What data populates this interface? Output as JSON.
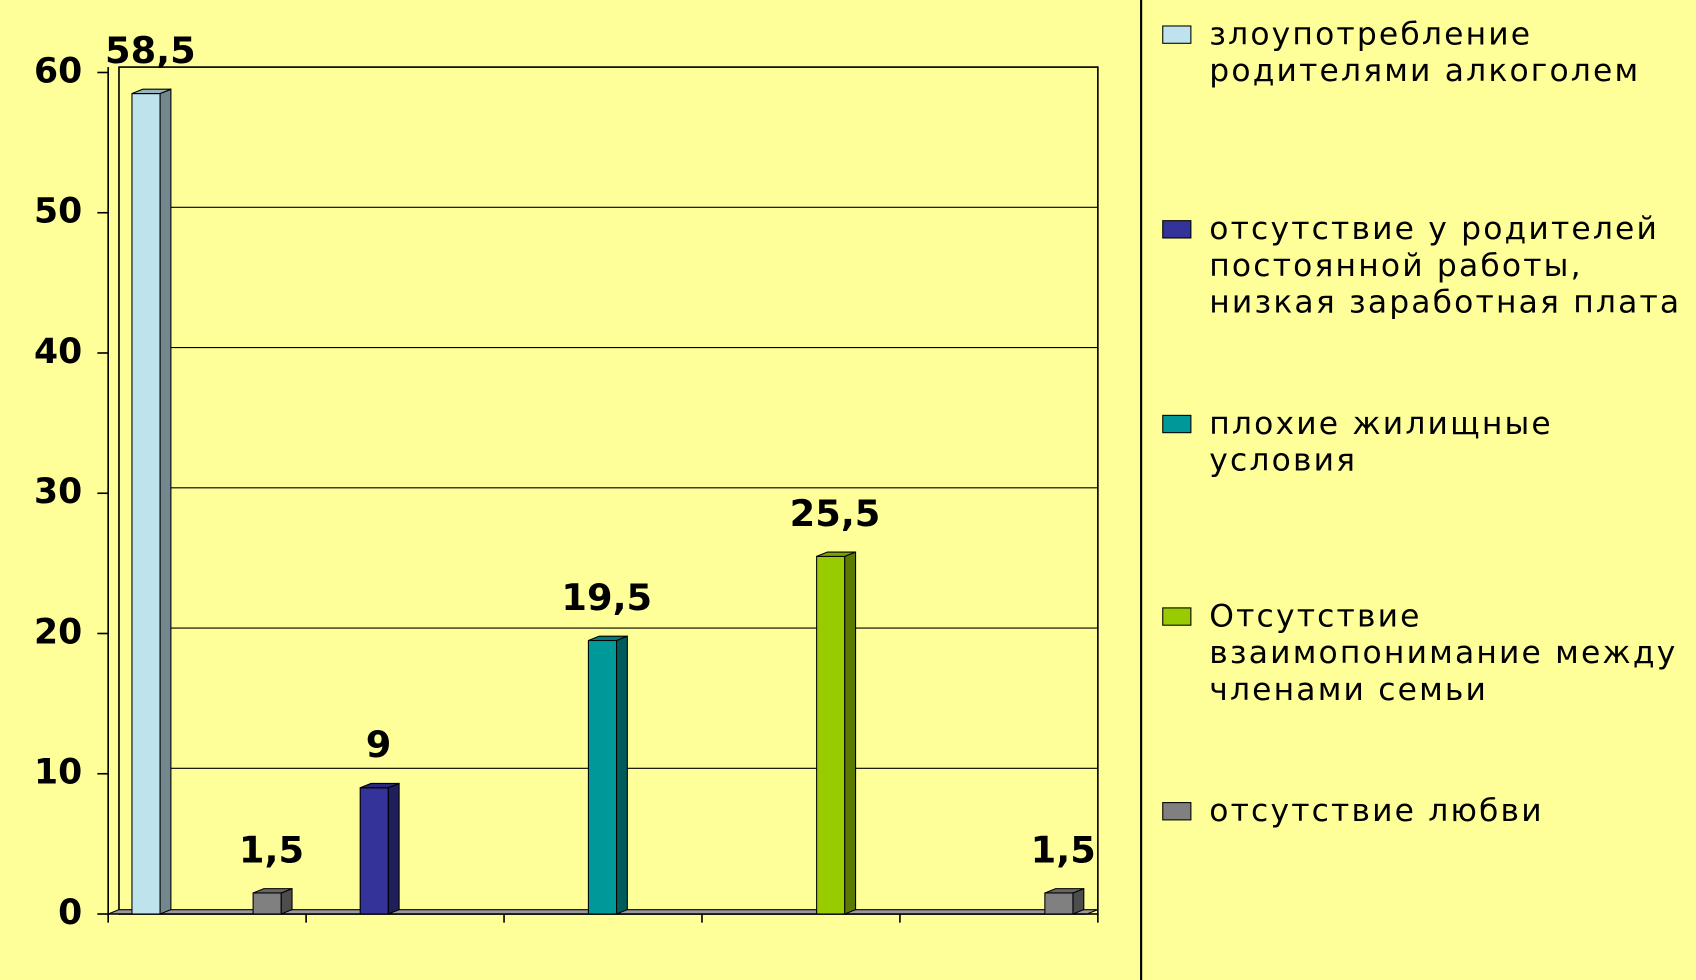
{
  "chart_data": {
    "type": "bar",
    "categories": [
      null,
      null,
      null,
      null,
      null
    ],
    "series": [
      {
        "name": "злоупотребление родителями алкоголем",
        "color": "#bfe3ec",
        "values": [
          58.5,
          null,
          null,
          null,
          null
        ],
        "value_labels": [
          "58,5",
          null,
          null,
          null,
          null
        ]
      },
      {
        "name": "отсутствие у родителей постоянной работы, низкая заработная плата",
        "color": "#333399",
        "values": [
          null,
          9,
          null,
          null,
          null
        ],
        "value_labels": [
          null,
          "9",
          null,
          null,
          null
        ]
      },
      {
        "name": "плохие жилищные условия",
        "color": "#009999",
        "values": [
          null,
          null,
          19.5,
          null,
          null
        ],
        "value_labels": [
          null,
          null,
          "19,5",
          null,
          null
        ]
      },
      {
        "name": "Отсутствие взаимопонимание между членами семьи",
        "color": "#99cc00",
        "values": [
          null,
          null,
          null,
          25.5,
          null
        ],
        "value_labels": [
          null,
          null,
          null,
          "25,5",
          null
        ]
      },
      {
        "name": "отсутствие любви",
        "color": "#808080",
        "values": [
          1.5,
          null,
          null,
          null,
          1.5
        ],
        "value_labels": [
          "1,5",
          null,
          null,
          null,
          "1,5"
        ]
      }
    ],
    "ylim": [
      0,
      60
    ],
    "yticks": [
      0,
      10,
      20,
      30,
      40,
      50,
      60
    ],
    "grid": true,
    "legend": "right"
  }
}
